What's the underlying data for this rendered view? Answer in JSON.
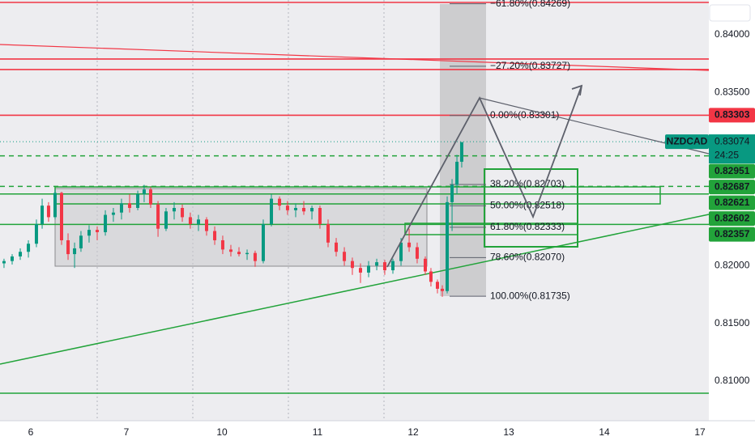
{
  "chart_data": {
    "type": "candlestick",
    "up_color": "#089981",
    "down_color": "#f23645",
    "x": [
      -0.28,
      -0.195,
      -0.11,
      -0.025,
      0.059,
      0.119,
      0.186,
      0.254,
      0.322,
      0.39,
      0.458,
      0.525,
      0.61,
      0.695,
      0.78,
      0.864,
      0.949,
      1.034,
      1.119,
      1.186,
      1.254,
      1.331,
      1.415,
      1.5,
      1.585,
      1.669,
      1.754,
      1.839,
      1.924,
      2.008,
      2.093,
      2.178,
      2.263,
      2.347,
      2.432,
      2.517,
      2.602,
      2.686,
      2.771,
      2.856,
      2.941,
      3.025,
      3.11,
      3.195,
      3.28,
      3.364,
      3.449,
      3.534,
      3.619,
      3.703,
      3.788,
      3.873,
      3.958,
      4.042,
      4.127,
      4.186,
      4.254,
      4.305,
      4.356,
      4.407,
      4.458,
      4.508
    ],
    "open": [
      0.8202,
      0.8204,
      0.8208,
      0.8212,
      0.8219,
      0.8236,
      0.8252,
      0.8242,
      0.8263,
      0.8222,
      0.821,
      0.8215,
      0.8226,
      0.8231,
      0.8229,
      0.8244,
      0.8246,
      0.8254,
      0.825,
      0.8262,
      0.8266,
      0.8253,
      0.8232,
      0.8247,
      0.825,
      0.8242,
      0.8236,
      0.824,
      0.823,
      0.8222,
      0.8214,
      0.8212,
      0.821,
      0.8211,
      0.8204,
      0.8236,
      0.8258,
      0.8252,
      0.8248,
      0.825,
      0.8247,
      0.825,
      0.8236,
      0.822,
      0.8212,
      0.8204,
      0.8198,
      0.8194,
      0.82,
      0.8203,
      0.8196,
      0.8204,
      0.822,
      0.8216,
      0.8206,
      0.8195,
      0.8186,
      0.818,
      0.8178,
      0.8255,
      0.827,
      0.829
    ],
    "high": [
      0.8206,
      0.821,
      0.8215,
      0.8222,
      0.824,
      0.8258,
      0.8255,
      0.8266,
      0.8264,
      0.8228,
      0.822,
      0.823,
      0.8235,
      0.8234,
      0.8248,
      0.825,
      0.8258,
      0.8262,
      0.8265,
      0.827,
      0.8268,
      0.8256,
      0.825,
      0.8255,
      0.8253,
      0.8246,
      0.8244,
      0.8242,
      0.8234,
      0.8226,
      0.8218,
      0.8216,
      0.8214,
      0.8213,
      0.824,
      0.8262,
      0.826,
      0.8256,
      0.8254,
      0.8256,
      0.8252,
      0.8252,
      0.824,
      0.8224,
      0.8216,
      0.8207,
      0.8202,
      0.8204,
      0.8206,
      0.8205,
      0.8206,
      0.8224,
      0.8232,
      0.822,
      0.8208,
      0.8198,
      0.8188,
      0.8183,
      0.826,
      0.8275,
      0.8296,
      0.8307
    ],
    "low": [
      0.8198,
      0.8201,
      0.8205,
      0.8207,
      0.8216,
      0.8232,
      0.8238,
      0.824,
      0.8218,
      0.8205,
      0.8198,
      0.8212,
      0.822,
      0.8222,
      0.8226,
      0.8238,
      0.824,
      0.8246,
      0.8248,
      0.8255,
      0.825,
      0.8225,
      0.823,
      0.824,
      0.8238,
      0.8232,
      0.823,
      0.8226,
      0.8218,
      0.821,
      0.8208,
      0.8208,
      0.8205,
      0.8199,
      0.8202,
      0.8234,
      0.8248,
      0.8244,
      0.8242,
      0.8244,
      0.824,
      0.8232,
      0.8216,
      0.8208,
      0.82,
      0.8192,
      0.8185,
      0.819,
      0.8196,
      0.8192,
      0.8193,
      0.82,
      0.8212,
      0.8202,
      0.8192,
      0.8182,
      0.8176,
      0.8173,
      0.8176,
      0.823,
      0.8262,
      0.8285
    ],
    "close": [
      0.8204,
      0.8208,
      0.8212,
      0.8219,
      0.8236,
      0.8252,
      0.8242,
      0.8263,
      0.8222,
      0.821,
      0.8215,
      0.8226,
      0.8231,
      0.8229,
      0.8244,
      0.8246,
      0.8254,
      0.825,
      0.8262,
      0.8266,
      0.8253,
      0.8232,
      0.8247,
      0.825,
      0.8242,
      0.8236,
      0.824,
      0.823,
      0.8222,
      0.8214,
      0.8212,
      0.821,
      0.8211,
      0.8204,
      0.8236,
      0.8258,
      0.8252,
      0.8248,
      0.825,
      0.8247,
      0.825,
      0.8236,
      0.822,
      0.8212,
      0.8204,
      0.8198,
      0.8194,
      0.82,
      0.8203,
      0.8196,
      0.8204,
      0.822,
      0.8216,
      0.8206,
      0.8195,
      0.8186,
      0.818,
      0.8178,
      0.8255,
      0.827,
      0.829,
      0.8307
    ],
    "xlim": [
      -0.322,
      7.093
    ],
    "ylim": [
      0.80657,
      0.84301
    ],
    "xticks": [
      {
        "value": 0,
        "label": "6"
      },
      {
        "value": 1,
        "label": "7"
      },
      {
        "value": 2,
        "label": "10"
      },
      {
        "value": 3,
        "label": "11"
      },
      {
        "value": 4,
        "label": "12"
      },
      {
        "value": 5,
        "label": "13"
      },
      {
        "value": 6,
        "label": "14"
      },
      {
        "value": 7,
        "label": "17"
      }
    ],
    "yticks": [
      {
        "value": 0.84,
        "label": "0.84000"
      },
      {
        "value": 0.835,
        "label": "0.83500"
      },
      {
        "value": 0.82,
        "label": "0.82000"
      },
      {
        "value": 0.815,
        "label": "0.81500"
      },
      {
        "value": 0.81,
        "label": "0.81000"
      }
    ],
    "levels": [
      {
        "value": 0.8428,
        "color": "#f23645",
        "style": "solid"
      },
      {
        "value": 0.8379,
        "color": "#f23645",
        "style": "solid"
      },
      {
        "value": 0.83699,
        "color": "#f23645",
        "style": "solid"
      },
      {
        "value": 0.83303,
        "color": "#f23645",
        "style": "solid"
      },
      {
        "value": 0.82951,
        "color": "#22a33a",
        "style": "dashed"
      },
      {
        "value": 0.82687,
        "color": "#22a33a",
        "style": "dashed"
      },
      {
        "value": 0.82621,
        "color": "#22a33a",
        "style": "solid"
      },
      {
        "value": 0.82357,
        "color": "#22a33a",
        "style": "solid"
      },
      {
        "value": 0.80895,
        "color": "#22a33a",
        "style": "solid"
      }
    ],
    "fib_levels": [
      {
        "value": 0.84269,
        "label": "−61.80%(0.84269)"
      },
      {
        "value": 0.83727,
        "label": "−27.20%(0.83727)"
      },
      {
        "value": 0.83301,
        "label": "0.00%(0.83301)"
      },
      {
        "value": 0.82703,
        "label": "38.20%(0.82703)"
      },
      {
        "value": 0.82518,
        "label": "50.00%(0.82518)"
      },
      {
        "value": 0.82333,
        "label": "61.80%(0.82333)"
      },
      {
        "value": 0.8207,
        "label": "78.60%(0.82070)"
      },
      {
        "value": 0.81735,
        "label": "100.00%(0.81735)"
      }
    ],
    "symbol": "NZDCAD",
    "last_price": 0.83074,
    "countdown": "24:25",
    "price_badges": [
      {
        "value": 0.83303,
        "color": "#f23645"
      },
      {
        "value": 0.82951,
        "color": "#22a33a"
      },
      {
        "value": 0.82687,
        "color": "#22a33a"
      },
      {
        "value": 0.82621,
        "color": "#22a33a"
      },
      {
        "value": 0.82602,
        "color": "#22a33a"
      },
      {
        "value": 0.82357,
        "color": "#22a33a"
      }
    ]
  }
}
